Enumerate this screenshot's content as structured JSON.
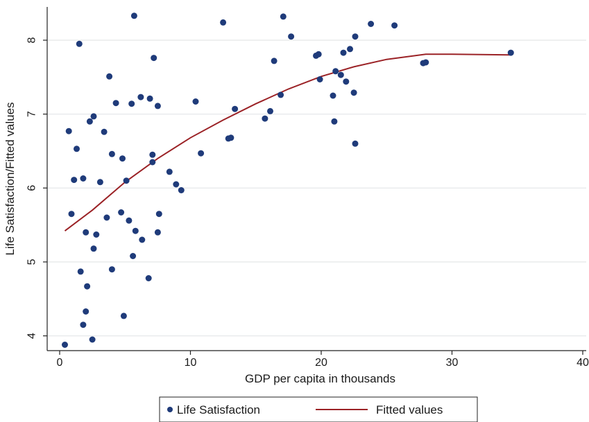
{
  "chart_data": {
    "type": "scatter",
    "xlabel": "GDP per capita in thousands",
    "ylabel": "Life Satisfaction/Fitted values",
    "xlim": [
      0,
      40
    ],
    "ylim": [
      3.8,
      8.45
    ],
    "xticks": [
      0,
      10,
      20,
      30,
      40
    ],
    "yticks": [
      4,
      5,
      6,
      7,
      8
    ],
    "grid": "horizontal",
    "legend_position": "bottom",
    "series": [
      {
        "name": "Life Satisfaction",
        "kind": "scatter",
        "color": "#1f3b7a",
        "points": [
          [
            0.4,
            3.88
          ],
          [
            0.7,
            6.77
          ],
          [
            0.9,
            5.65
          ],
          [
            1.1,
            6.11
          ],
          [
            1.3,
            6.53
          ],
          [
            1.5,
            7.95
          ],
          [
            1.6,
            4.87
          ],
          [
            1.8,
            6.13
          ],
          [
            1.8,
            4.15
          ],
          [
            2.0,
            4.33
          ],
          [
            2.0,
            5.4
          ],
          [
            2.1,
            4.67
          ],
          [
            2.3,
            6.9
          ],
          [
            2.5,
            3.95
          ],
          [
            2.6,
            5.18
          ],
          [
            2.6,
            6.97
          ],
          [
            2.8,
            5.37
          ],
          [
            3.1,
            6.08
          ],
          [
            3.4,
            6.76
          ],
          [
            3.6,
            5.6
          ],
          [
            3.8,
            7.51
          ],
          [
            4.0,
            6.46
          ],
          [
            4.0,
            4.9
          ],
          [
            4.3,
            7.15
          ],
          [
            4.7,
            5.67
          ],
          [
            4.8,
            6.4
          ],
          [
            4.9,
            4.27
          ],
          [
            5.1,
            6.1
          ],
          [
            5.3,
            5.56
          ],
          [
            5.5,
            7.14
          ],
          [
            5.6,
            5.08
          ],
          [
            5.7,
            8.33
          ],
          [
            5.8,
            5.42
          ],
          [
            6.2,
            7.23
          ],
          [
            6.3,
            5.3
          ],
          [
            6.8,
            4.78
          ],
          [
            6.9,
            7.21
          ],
          [
            7.1,
            6.45
          ],
          [
            7.1,
            6.35
          ],
          [
            7.2,
            7.76
          ],
          [
            7.5,
            5.4
          ],
          [
            7.6,
            5.65
          ],
          [
            7.5,
            7.11
          ],
          [
            8.4,
            6.22
          ],
          [
            8.9,
            6.05
          ],
          [
            9.3,
            5.97
          ],
          [
            10.4,
            7.17
          ],
          [
            10.8,
            6.47
          ],
          [
            12.5,
            8.24
          ],
          [
            12.9,
            6.67
          ],
          [
            13.1,
            6.68
          ],
          [
            13.4,
            7.07
          ],
          [
            15.7,
            6.94
          ],
          [
            16.1,
            7.04
          ],
          [
            16.4,
            7.72
          ],
          [
            16.9,
            7.26
          ],
          [
            17.1,
            8.32
          ],
          [
            17.7,
            8.05
          ],
          [
            19.6,
            7.79
          ],
          [
            19.8,
            7.81
          ],
          [
            19.9,
            7.47
          ],
          [
            20.9,
            7.25
          ],
          [
            21.0,
            6.9
          ],
          [
            21.1,
            7.58
          ],
          [
            21.5,
            7.53
          ],
          [
            21.7,
            7.83
          ],
          [
            21.9,
            7.44
          ],
          [
            22.2,
            7.88
          ],
          [
            22.5,
            7.29
          ],
          [
            22.6,
            8.05
          ],
          [
            22.6,
            6.6
          ],
          [
            23.8,
            8.22
          ],
          [
            25.6,
            8.2
          ],
          [
            27.8,
            7.69
          ],
          [
            28.0,
            7.7
          ],
          [
            34.5,
            7.83
          ]
        ]
      },
      {
        "name": "Fitted values",
        "kind": "line",
        "color": "#9b2226",
        "points": [
          [
            0.4,
            5.42
          ],
          [
            2.5,
            5.7
          ],
          [
            5.0,
            6.08
          ],
          [
            7.5,
            6.4
          ],
          [
            10.0,
            6.68
          ],
          [
            12.5,
            6.92
          ],
          [
            15.0,
            7.14
          ],
          [
            17.5,
            7.34
          ],
          [
            20.0,
            7.51
          ],
          [
            22.5,
            7.64
          ],
          [
            25.0,
            7.74
          ],
          [
            28.0,
            7.81
          ],
          [
            30.0,
            7.81
          ],
          [
            34.5,
            7.8
          ]
        ]
      }
    ]
  }
}
